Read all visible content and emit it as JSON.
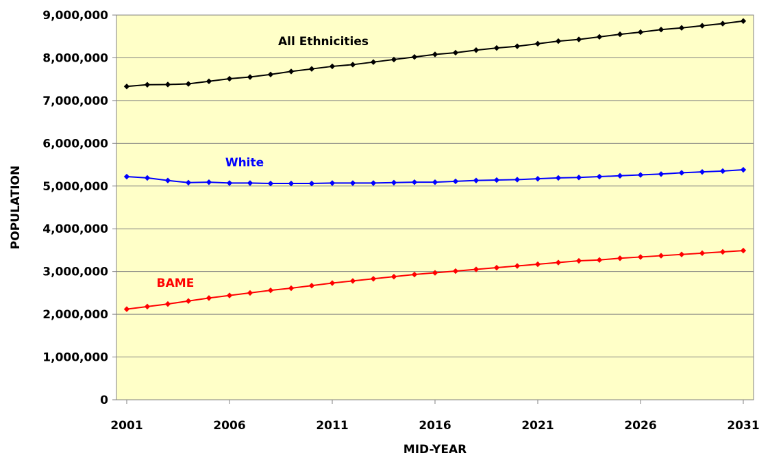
{
  "chart_data": {
    "type": "line",
    "xlabel": "MID-YEAR",
    "ylabel": "POPULATION",
    "ylim": [
      0,
      9000000
    ],
    "xlim": [
      2001,
      2031
    ],
    "y_ticks": [
      "0",
      "1,000,000",
      "2,000,000",
      "3,000,000",
      "4,000,000",
      "5,000,000",
      "6,000,000",
      "7,000,000",
      "8,000,000",
      "9,000,000"
    ],
    "x_ticks": [
      "2001",
      "2006",
      "2011",
      "2016",
      "2021",
      "2026",
      "2031"
    ],
    "grid": true,
    "plot_background": "#FFFFC8",
    "x": [
      2001,
      2002,
      2003,
      2004,
      2005,
      2006,
      2007,
      2008,
      2009,
      2010,
      2011,
      2012,
      2013,
      2014,
      2015,
      2016,
      2017,
      2018,
      2019,
      2020,
      2021,
      2022,
      2023,
      2024,
      2025,
      2026,
      2027,
      2028,
      2029,
      2030,
      2031
    ],
    "series": [
      {
        "name": "All Ethnicities",
        "color": "#000000",
        "values": [
          7330000,
          7370000,
          7375000,
          7390000,
          7450000,
          7510000,
          7550000,
          7610000,
          7680000,
          7740000,
          7800000,
          7840000,
          7900000,
          7960000,
          8020000,
          8080000,
          8120000,
          8180000,
          8230000,
          8270000,
          8330000,
          8390000,
          8430000,
          8490000,
          8550000,
          8600000,
          8660000,
          8700000,
          8750000,
          8800000,
          8860000
        ]
      },
      {
        "name": "White",
        "color": "#0000FF",
        "values": [
          5220000,
          5190000,
          5130000,
          5080000,
          5090000,
          5070000,
          5070000,
          5060000,
          5060000,
          5060000,
          5070000,
          5070000,
          5070000,
          5080000,
          5090000,
          5090000,
          5110000,
          5130000,
          5140000,
          5150000,
          5170000,
          5190000,
          5200000,
          5220000,
          5240000,
          5260000,
          5280000,
          5310000,
          5330000,
          5350000,
          5380000
        ]
      },
      {
        "name": "BAME",
        "color": "#FF0000",
        "values": [
          2120000,
          2180000,
          2240000,
          2310000,
          2380000,
          2440000,
          2500000,
          2560000,
          2610000,
          2670000,
          2730000,
          2780000,
          2830000,
          2880000,
          2930000,
          2970000,
          3010000,
          3050000,
          3090000,
          3130000,
          3170000,
          3210000,
          3250000,
          3270000,
          3310000,
          3340000,
          3370000,
          3400000,
          3430000,
          3460000,
          3490000
        ]
      }
    ]
  }
}
